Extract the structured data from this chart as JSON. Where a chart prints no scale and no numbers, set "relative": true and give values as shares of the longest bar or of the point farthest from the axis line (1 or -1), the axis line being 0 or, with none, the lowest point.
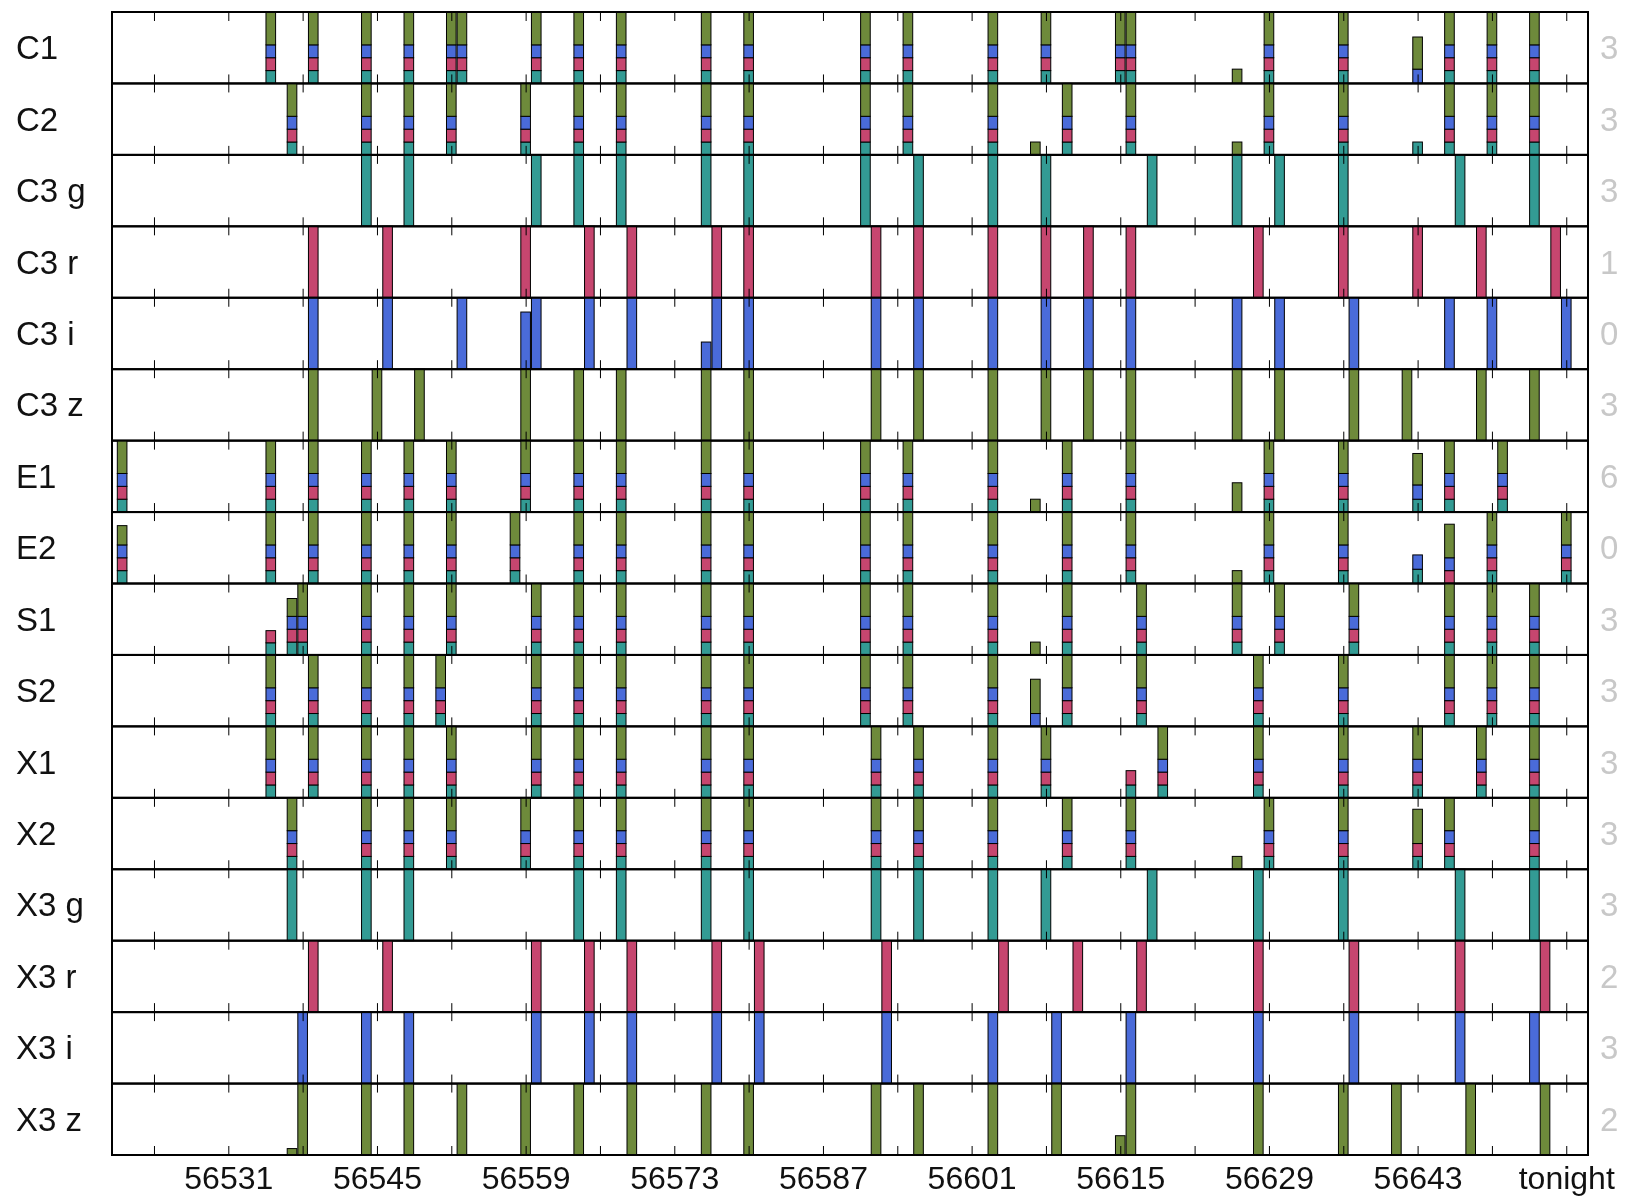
{
  "chart_data": [
    {
      "type": "bar",
      "stacked": true,
      "relative": true,
      "ylabel": "C1",
      "annotations": [
        "3"
      ],
      "xlim": [
        56520,
        56659
      ],
      "tick_labels": false,
      "xticks": [
        56524,
        56531,
        56538,
        56545,
        56552,
        56559,
        56566,
        56573,
        56580,
        56587,
        56594,
        56601,
        56608,
        56615,
        56622,
        56629,
        56636,
        56643,
        56650,
        56657
      ],
      "x": [
        56535,
        56539,
        56544,
        56548,
        56552,
        56553,
        56560,
        56564,
        56568,
        56576,
        56580,
        56591,
        56595,
        56603,
        56608,
        56615,
        56616,
        56626,
        56629,
        56636,
        56643,
        56646,
        56650,
        56654
      ],
      "series": [
        {
          "color": "#339b94",
          "values": [
            0.18,
            0.18,
            0.18,
            0.18,
            0.18,
            0.18,
            0.18,
            0.18,
            0.18,
            0.18,
            0.18,
            0.18,
            0.18,
            0.18,
            0.18,
            0.18,
            0.18,
            null,
            0.18,
            0.18,
            null,
            0.18,
            0.18,
            0.18
          ]
        },
        {
          "color": "#c6466f",
          "values": [
            0.18,
            0.18,
            0.18,
            0.18,
            0.18,
            0.18,
            0.18,
            0.18,
            0.18,
            0.18,
            0.18,
            0.18,
            0.18,
            0.18,
            0.18,
            0.18,
            0.18,
            null,
            0.18,
            0.18,
            null,
            0.18,
            0.18,
            0.18
          ]
        },
        {
          "color": "#4a6bd9",
          "values": [
            0.18,
            0.18,
            0.18,
            0.18,
            0.18,
            0.18,
            0.18,
            0.18,
            0.18,
            0.18,
            0.18,
            0.18,
            0.18,
            0.18,
            0.18,
            0.18,
            0.18,
            null,
            0.18,
            0.18,
            0.2,
            0.18,
            0.18,
            0.18
          ]
        },
        {
          "color": "#6e8a3b",
          "values": [
            0.46,
            0.46,
            0.46,
            0.46,
            0.46,
            0.46,
            0.46,
            0.46,
            0.46,
            0.46,
            0.46,
            0.46,
            0.46,
            0.46,
            0.46,
            0.46,
            0.46,
            0.2,
            0.46,
            0.46,
            0.45,
            0.46,
            0.46,
            0.46
          ]
        }
      ]
    },
    {
      "type": "bar",
      "stacked": true,
      "relative": true,
      "ylabel": "C2",
      "annotations": [
        "3"
      ],
      "xlim": [
        56520,
        56659
      ],
      "tick_labels": false,
      "xticks": [
        56524,
        56531,
        56538,
        56545,
        56552,
        56559,
        56566,
        56573,
        56580,
        56587,
        56594,
        56601,
        56608,
        56615,
        56622,
        56629,
        56636,
        56643,
        56650,
        56657
      ],
      "x": [
        56537,
        56544,
        56548,
        56552,
        56559,
        56564,
        56568,
        56576,
        56580,
        56591,
        56595,
        56603,
        56607,
        56610,
        56616,
        56626,
        56629,
        56636,
        56643,
        56646,
        56650,
        56654
      ],
      "series": [
        {
          "color": "#339b94",
          "values": [
            0.18,
            0.18,
            0.18,
            0.18,
            0.18,
            0.18,
            0.18,
            0.18,
            0.18,
            0.18,
            0.18,
            0.18,
            null,
            0.18,
            0.18,
            null,
            0.18,
            0.18,
            0.18,
            0.18,
            0.18,
            0.18
          ]
        },
        {
          "color": "#c6466f",
          "values": [
            0.18,
            0.18,
            0.18,
            0.18,
            0.18,
            0.18,
            0.18,
            0.18,
            0.18,
            0.18,
            0.18,
            0.18,
            null,
            0.18,
            0.18,
            null,
            0.18,
            0.18,
            null,
            0.18,
            0.18,
            0.18
          ]
        },
        {
          "color": "#4a6bd9",
          "values": [
            0.18,
            0.18,
            0.18,
            0.18,
            0.18,
            0.18,
            0.18,
            0.18,
            0.18,
            0.18,
            0.18,
            0.18,
            null,
            0.18,
            0.18,
            null,
            0.18,
            0.18,
            null,
            0.18,
            0.18,
            0.18
          ]
        },
        {
          "color": "#6e8a3b",
          "values": [
            0.46,
            0.46,
            0.46,
            0.46,
            0.46,
            0.46,
            0.46,
            0.46,
            0.46,
            0.46,
            0.46,
            0.46,
            0.18,
            0.46,
            0.46,
            0.18,
            0.46,
            0.46,
            null,
            0.46,
            0.46,
            0.46
          ]
        }
      ]
    },
    {
      "type": "bar",
      "relative": true,
      "ylabel": "C3 g",
      "annotations": [
        "3"
      ],
      "xlim": [
        56520,
        56659
      ],
      "tick_labels": false,
      "xticks": [
        56524,
        56531,
        56538,
        56545,
        56552,
        56559,
        56566,
        56573,
        56580,
        56587,
        56594,
        56601,
        56608,
        56615,
        56622,
        56629,
        56636,
        56643,
        56650,
        56657
      ],
      "series": [
        {
          "color": "#339b94",
          "x": [
            56544,
            56548,
            56560,
            56564,
            56568,
            56576,
            56580,
            56591,
            56596,
            56603,
            56608,
            56618,
            56626,
            56630,
            56636,
            56647,
            56654
          ],
          "values": [
            1,
            1,
            1,
            1,
            1,
            1,
            1,
            1,
            1,
            1,
            1,
            1,
            1,
            1,
            1,
            1,
            1
          ]
        }
      ]
    },
    {
      "type": "bar",
      "relative": true,
      "ylabel": "C3 r",
      "annotations": [
        "1"
      ],
      "xlim": [
        56520,
        56659
      ],
      "tick_labels": false,
      "xticks": [
        56524,
        56531,
        56538,
        56545,
        56552,
        56559,
        56566,
        56573,
        56580,
        56587,
        56594,
        56601,
        56608,
        56615,
        56622,
        56629,
        56636,
        56643,
        56650,
        56657
      ],
      "series": [
        {
          "color": "#c6466f",
          "x": [
            56539,
            56546,
            56559,
            56565,
            56569,
            56577,
            56580,
            56592,
            56596,
            56603,
            56608,
            56612,
            56616,
            56628,
            56636,
            56643,
            56649,
            56656
          ],
          "values": [
            1,
            1,
            1,
            1,
            1,
            1,
            1,
            1,
            1,
            1,
            1,
            1,
            1,
            1,
            1,
            1,
            1,
            1
          ]
        }
      ]
    },
    {
      "type": "bar",
      "relative": true,
      "ylabel": "C3 i",
      "annotations": [
        "0"
      ],
      "xlim": [
        56520,
        56659
      ],
      "tick_labels": false,
      "xticks": [
        56524,
        56531,
        56538,
        56545,
        56552,
        56559,
        56566,
        56573,
        56580,
        56587,
        56594,
        56601,
        56608,
        56615,
        56622,
        56629,
        56636,
        56643,
        56650,
        56657
      ],
      "series": [
        {
          "color": "#4a6bd9",
          "x": [
            56539,
            56546,
            56553,
            56559,
            56560,
            56565,
            56569,
            56576,
            56577,
            56580,
            56592,
            56596,
            56603,
            56608,
            56612,
            56616,
            56626,
            56630,
            56637,
            56646,
            56650,
            56657
          ],
          "values": [
            1,
            1,
            1,
            0.8,
            1,
            1,
            1,
            0.38,
            1,
            1,
            1,
            1,
            1,
            1,
            1,
            1,
            1,
            1,
            1,
            1,
            1,
            1
          ]
        }
      ]
    },
    {
      "type": "bar",
      "relative": true,
      "ylabel": "C3 z",
      "annotations": [
        "3"
      ],
      "xlim": [
        56520,
        56659
      ],
      "tick_labels": false,
      "xticks": [
        56524,
        56531,
        56538,
        56545,
        56552,
        56559,
        56566,
        56573,
        56580,
        56587,
        56594,
        56601,
        56608,
        56615,
        56622,
        56629,
        56636,
        56643,
        56650,
        56657
      ],
      "series": [
        {
          "color": "#6e8a3b",
          "x": [
            56539,
            56545,
            56549,
            56559,
            56564,
            56568,
            56576,
            56580,
            56592,
            56596,
            56603,
            56608,
            56612,
            56616,
            56626,
            56630,
            56637,
            56642,
            56649,
            56654
          ],
          "values": [
            1,
            1,
            1,
            1,
            1,
            1,
            1,
            1,
            1,
            1,
            1,
            1,
            1,
            1,
            1,
            1,
            1,
            1,
            1,
            1
          ]
        }
      ]
    },
    {
      "type": "bar",
      "stacked": true,
      "relative": true,
      "ylabel": "E1",
      "annotations": [
        "6"
      ],
      "xlim": [
        56520,
        56659
      ],
      "tick_labels": false,
      "xticks": [
        56524,
        56531,
        56538,
        56545,
        56552,
        56559,
        56566,
        56573,
        56580,
        56587,
        56594,
        56601,
        56608,
        56615,
        56622,
        56629,
        56636,
        56643,
        56650,
        56657
      ],
      "x": [
        56521,
        56535,
        56539,
        56544,
        56548,
        56552,
        56559,
        56564,
        56568,
        56576,
        56580,
        56591,
        56595,
        56603,
        56607,
        56610,
        56616,
        56626,
        56629,
        56636,
        56643,
        56646,
        56651
      ],
      "series": [
        {
          "color": "#339b94",
          "values": [
            0.18,
            0.18,
            0.18,
            0.18,
            0.18,
            0.18,
            0.18,
            0.18,
            0.18,
            0.18,
            0.18,
            0.18,
            0.18,
            0.18,
            null,
            0.18,
            0.18,
            null,
            0.18,
            0.18,
            0.18,
            0.18,
            0.18
          ]
        },
        {
          "color": "#c6466f",
          "values": [
            0.18,
            0.18,
            0.18,
            0.18,
            0.18,
            0.18,
            0.18,
            0.18,
            0.18,
            0.18,
            0.18,
            0.18,
            0.18,
            0.18,
            null,
            0.18,
            0.18,
            null,
            0.18,
            0.18,
            null,
            0.18,
            0.18
          ]
        },
        {
          "color": "#4a6bd9",
          "values": [
            0.18,
            0.18,
            0.18,
            0.18,
            0.18,
            0.18,
            0.18,
            0.18,
            0.18,
            0.18,
            0.18,
            0.18,
            0.18,
            0.18,
            null,
            0.18,
            0.18,
            null,
            0.18,
            0.18,
            0.2,
            0.18,
            0.18
          ]
        },
        {
          "color": "#6e8a3b",
          "values": [
            0.46,
            0.46,
            0.46,
            0.46,
            0.46,
            0.46,
            0.46,
            0.46,
            0.46,
            0.46,
            0.46,
            0.46,
            0.46,
            0.46,
            0.18,
            0.46,
            0.46,
            0.41,
            0.46,
            0.46,
            0.44,
            0.46,
            0.46
          ]
        }
      ]
    },
    {
      "type": "bar",
      "stacked": true,
      "relative": true,
      "ylabel": "E2",
      "annotations": [
        "0"
      ],
      "xlim": [
        56520,
        56659
      ],
      "tick_labels": false,
      "xticks": [
        56524,
        56531,
        56538,
        56545,
        56552,
        56559,
        56566,
        56573,
        56580,
        56587,
        56594,
        56601,
        56608,
        56615,
        56622,
        56629,
        56636,
        56643,
        56650,
        56657
      ],
      "x": [
        56521,
        56535,
        56539,
        56544,
        56548,
        56552,
        56558,
        56564,
        56568,
        56576,
        56580,
        56591,
        56595,
        56603,
        56610,
        56616,
        56626,
        56629,
        56636,
        56643,
        56646,
        56650,
        56657
      ],
      "series": [
        {
          "color": "#339b94",
          "values": [
            0.18,
            0.18,
            0.18,
            0.18,
            0.18,
            0.18,
            0.18,
            0.18,
            0.18,
            0.18,
            0.18,
            0.18,
            0.18,
            0.18,
            0.18,
            0.18,
            null,
            0.18,
            0.18,
            0.2,
            null,
            0.18,
            0.18
          ]
        },
        {
          "color": "#c6466f",
          "values": [
            0.18,
            0.18,
            0.18,
            0.18,
            0.18,
            0.18,
            0.18,
            0.18,
            0.18,
            0.18,
            0.18,
            0.18,
            0.18,
            0.18,
            0.18,
            0.18,
            null,
            0.18,
            0.18,
            null,
            0.18,
            0.18,
            0.18
          ]
        },
        {
          "color": "#4a6bd9",
          "values": [
            0.18,
            0.18,
            0.18,
            0.18,
            0.18,
            0.18,
            0.18,
            0.18,
            0.18,
            0.18,
            0.18,
            0.18,
            0.18,
            0.18,
            0.18,
            0.18,
            null,
            0.18,
            0.18,
            0.2,
            0.18,
            0.18,
            0.18
          ]
        },
        {
          "color": "#6e8a3b",
          "values": [
            0.27,
            0.46,
            0.46,
            0.46,
            0.46,
            0.46,
            0.46,
            0.46,
            0.46,
            0.46,
            0.46,
            0.46,
            0.46,
            0.46,
            0.46,
            0.46,
            0.18,
            0.46,
            0.46,
            null,
            0.47,
            0.46,
            0.46
          ]
        }
      ]
    },
    {
      "type": "bar",
      "stacked": true,
      "relative": true,
      "ylabel": "S1",
      "annotations": [
        "3"
      ],
      "xlim": [
        56520,
        56659
      ],
      "tick_labels": false,
      "xticks": [
        56524,
        56531,
        56538,
        56545,
        56552,
        56559,
        56566,
        56573,
        56580,
        56587,
        56594,
        56601,
        56608,
        56615,
        56622,
        56629,
        56636,
        56643,
        56650,
        56657
      ],
      "x": [
        56535,
        56537,
        56538,
        56544,
        56548,
        56552,
        56560,
        56564,
        56568,
        56576,
        56580,
        56591,
        56595,
        56603,
        56607,
        56610,
        56617,
        56626,
        56630,
        56637,
        56646,
        56650,
        56654
      ],
      "series": [
        {
          "color": "#339b94",
          "values": [
            0.17,
            0.18,
            0.18,
            0.18,
            0.18,
            0.18,
            0.18,
            0.18,
            0.18,
            0.18,
            0.18,
            0.18,
            0.18,
            0.18,
            null,
            0.18,
            0.18,
            0.18,
            0.18,
            0.18,
            0.18,
            0.18,
            0.18
          ]
        },
        {
          "color": "#c6466f",
          "values": [
            0.17,
            0.18,
            0.18,
            0.18,
            0.18,
            0.18,
            0.18,
            0.18,
            0.18,
            0.18,
            0.18,
            0.18,
            0.18,
            0.18,
            null,
            0.18,
            0.18,
            0.18,
            0.18,
            0.18,
            0.18,
            0.18,
            0.18
          ]
        },
        {
          "color": "#4a6bd9",
          "values": [
            null,
            0.18,
            0.18,
            0.18,
            0.18,
            0.18,
            0.18,
            0.18,
            0.18,
            0.18,
            0.18,
            0.18,
            0.18,
            0.18,
            null,
            0.18,
            0.18,
            0.18,
            0.18,
            0.18,
            0.18,
            0.18,
            0.18
          ]
        },
        {
          "color": "#6e8a3b",
          "values": [
            null,
            0.25,
            0.46,
            0.46,
            0.46,
            0.46,
            0.46,
            0.46,
            0.46,
            0.46,
            0.46,
            0.46,
            0.46,
            0.46,
            0.18,
            0.46,
            0.46,
            0.46,
            0.46,
            0.46,
            0.46,
            0.46,
            0.46
          ]
        }
      ]
    },
    {
      "type": "bar",
      "stacked": true,
      "relative": true,
      "ylabel": "S2",
      "annotations": [
        "3"
      ],
      "xlim": [
        56520,
        56659
      ],
      "tick_labels": false,
      "xticks": [
        56524,
        56531,
        56538,
        56545,
        56552,
        56559,
        56566,
        56573,
        56580,
        56587,
        56594,
        56601,
        56608,
        56615,
        56622,
        56629,
        56636,
        56643,
        56650,
        56657
      ],
      "x": [
        56535,
        56539,
        56544,
        56548,
        56551,
        56560,
        56564,
        56568,
        56576,
        56580,
        56591,
        56595,
        56603,
        56607,
        56610,
        56617,
        56628,
        56636,
        56646,
        56650,
        56654
      ],
      "series": [
        {
          "color": "#339b94",
          "values": [
            0.18,
            0.18,
            0.18,
            0.18,
            0.18,
            0.18,
            0.18,
            0.18,
            0.18,
            0.18,
            0.18,
            0.18,
            0.18,
            null,
            0.18,
            0.18,
            0.18,
            0.18,
            0.18,
            0.18,
            0.18
          ]
        },
        {
          "color": "#c6466f",
          "values": [
            0.18,
            0.18,
            0.18,
            0.18,
            0.18,
            0.18,
            0.18,
            0.18,
            0.18,
            0.18,
            0.18,
            0.18,
            0.18,
            null,
            0.18,
            0.18,
            0.18,
            0.18,
            0.18,
            0.18,
            0.18
          ]
        },
        {
          "color": "#4a6bd9",
          "values": [
            0.18,
            0.18,
            0.18,
            0.18,
            0.18,
            0.18,
            0.18,
            0.18,
            0.18,
            0.18,
            0.18,
            0.18,
            0.18,
            0.18,
            0.18,
            0.18,
            0.18,
            0.18,
            0.18,
            0.18,
            0.18
          ]
        },
        {
          "color": "#6e8a3b",
          "values": [
            0.46,
            0.46,
            0.46,
            0.46,
            0.46,
            0.46,
            0.46,
            0.46,
            0.46,
            0.46,
            0.46,
            0.46,
            0.46,
            0.48,
            0.46,
            0.46,
            0.46,
            0.46,
            0.46,
            0.46,
            0.46
          ]
        }
      ]
    },
    {
      "type": "bar",
      "stacked": true,
      "relative": true,
      "ylabel": "X1",
      "annotations": [
        "3"
      ],
      "xlim": [
        56520,
        56659
      ],
      "tick_labels": false,
      "xticks": [
        56524,
        56531,
        56538,
        56545,
        56552,
        56559,
        56566,
        56573,
        56580,
        56587,
        56594,
        56601,
        56608,
        56615,
        56622,
        56629,
        56636,
        56643,
        56650,
        56657
      ],
      "x": [
        56535,
        56539,
        56544,
        56548,
        56552,
        56560,
        56564,
        56568,
        56576,
        56580,
        56592,
        56596,
        56603,
        56608,
        56616,
        56619,
        56628,
        56636,
        56643,
        56649,
        56654
      ],
      "series": [
        {
          "color": "#339b94",
          "values": [
            0.18,
            0.18,
            0.18,
            0.18,
            0.18,
            0.18,
            0.18,
            0.18,
            0.18,
            0.18,
            0.18,
            0.18,
            0.18,
            0.18,
            0.18,
            0.18,
            0.18,
            0.18,
            0.18,
            0.18,
            0.18
          ]
        },
        {
          "color": "#c6466f",
          "values": [
            0.18,
            0.18,
            0.18,
            0.18,
            0.18,
            0.18,
            0.18,
            0.18,
            0.18,
            0.18,
            0.18,
            0.18,
            0.18,
            0.18,
            0.2,
            0.18,
            0.18,
            0.18,
            0.18,
            0.18,
            0.18
          ]
        },
        {
          "color": "#4a6bd9",
          "values": [
            0.18,
            0.18,
            0.18,
            0.18,
            0.18,
            0.18,
            0.18,
            0.18,
            0.18,
            0.18,
            0.18,
            0.18,
            0.18,
            0.18,
            null,
            0.18,
            0.18,
            0.18,
            0.18,
            0.18,
            0.18
          ]
        },
        {
          "color": "#6e8a3b",
          "values": [
            0.46,
            0.46,
            0.46,
            0.46,
            0.46,
            0.46,
            0.46,
            0.46,
            0.46,
            0.46,
            0.46,
            0.46,
            0.46,
            0.46,
            null,
            0.46,
            0.46,
            0.46,
            0.46,
            0.46,
            0.46
          ]
        }
      ]
    },
    {
      "type": "bar",
      "stacked": true,
      "relative": true,
      "ylabel": "X2",
      "annotations": [
        "3"
      ],
      "xlim": [
        56520,
        56659
      ],
      "tick_labels": false,
      "xticks": [
        56524,
        56531,
        56538,
        56545,
        56552,
        56559,
        56566,
        56573,
        56580,
        56587,
        56594,
        56601,
        56608,
        56615,
        56622,
        56629,
        56636,
        56643,
        56650,
        56657
      ],
      "x": [
        56537,
        56544,
        56548,
        56552,
        56559,
        56564,
        56568,
        56576,
        56580,
        56592,
        56596,
        56603,
        56610,
        56616,
        56626,
        56629,
        56636,
        56643,
        56646,
        56654
      ],
      "series": [
        {
          "color": "#339b94",
          "values": [
            0.18,
            0.18,
            0.18,
            0.18,
            0.18,
            0.18,
            0.18,
            0.18,
            0.18,
            0.18,
            0.18,
            0.18,
            0.18,
            0.18,
            null,
            0.18,
            0.18,
            0.18,
            0.18,
            0.18
          ]
        },
        {
          "color": "#c6466f",
          "values": [
            0.18,
            0.18,
            0.18,
            0.18,
            0.18,
            0.18,
            0.18,
            0.18,
            0.18,
            0.18,
            0.18,
            0.18,
            0.18,
            0.18,
            null,
            0.18,
            0.18,
            0.18,
            0.18,
            0.18
          ]
        },
        {
          "color": "#4a6bd9",
          "values": [
            0.18,
            0.18,
            0.18,
            0.18,
            0.18,
            0.18,
            0.18,
            0.18,
            0.18,
            0.18,
            0.18,
            0.18,
            0.18,
            0.18,
            null,
            0.18,
            0.18,
            null,
            0.18,
            0.18
          ]
        },
        {
          "color": "#6e8a3b",
          "values": [
            0.46,
            0.46,
            0.46,
            0.46,
            0.46,
            0.46,
            0.46,
            0.46,
            0.46,
            0.46,
            0.46,
            0.46,
            0.46,
            0.46,
            0.18,
            0.46,
            0.46,
            0.48,
            0.46,
            0.46
          ]
        }
      ]
    },
    {
      "type": "bar",
      "relative": true,
      "ylabel": "X3 g",
      "annotations": [
        "3"
      ],
      "xlim": [
        56520,
        56659
      ],
      "tick_labels": false,
      "xticks": [
        56524,
        56531,
        56538,
        56545,
        56552,
        56559,
        56566,
        56573,
        56580,
        56587,
        56594,
        56601,
        56608,
        56615,
        56622,
        56629,
        56636,
        56643,
        56650,
        56657
      ],
      "series": [
        {
          "color": "#339b94",
          "x": [
            56537,
            56544,
            56548,
            56564,
            56568,
            56576,
            56580,
            56592,
            56596,
            56603,
            56608,
            56618,
            56628,
            56636,
            56647,
            56654
          ],
          "values": [
            1,
            1,
            1,
            1,
            1,
            1,
            1,
            1,
            1,
            1,
            1,
            1,
            1,
            1,
            1,
            1
          ]
        }
      ]
    },
    {
      "type": "bar",
      "relative": true,
      "ylabel": "X3 r",
      "annotations": [
        "2"
      ],
      "xlim": [
        56520,
        56659
      ],
      "tick_labels": false,
      "xticks": [
        56524,
        56531,
        56538,
        56545,
        56552,
        56559,
        56566,
        56573,
        56580,
        56587,
        56594,
        56601,
        56608,
        56615,
        56622,
        56629,
        56636,
        56643,
        56650,
        56657
      ],
      "series": [
        {
          "color": "#c6466f",
          "x": [
            56539,
            56546,
            56560,
            56565,
            56569,
            56577,
            56581,
            56593,
            56604,
            56611,
            56617,
            56628,
            56637,
            56647,
            56655
          ],
          "values": [
            1,
            1,
            1,
            1,
            1,
            1,
            1,
            1,
            1,
            1,
            1,
            1,
            1,
            1,
            1
          ]
        }
      ]
    },
    {
      "type": "bar",
      "relative": true,
      "ylabel": "X3 i",
      "annotations": [
        "3"
      ],
      "xlim": [
        56520,
        56659
      ],
      "tick_labels": false,
      "xticks": [
        56524,
        56531,
        56538,
        56545,
        56552,
        56559,
        56566,
        56573,
        56580,
        56587,
        56594,
        56601,
        56608,
        56615,
        56622,
        56629,
        56636,
        56643,
        56650,
        56657
      ],
      "series": [
        {
          "color": "#4a6bd9",
          "x": [
            56538,
            56544,
            56548,
            56560,
            56565,
            56569,
            56577,
            56581,
            56593,
            56603,
            56609,
            56616,
            56628,
            56637,
            56647,
            56654
          ],
          "values": [
            1,
            1,
            1,
            1,
            1,
            1,
            1,
            1,
            1,
            1,
            1,
            1,
            1,
            1,
            1,
            1
          ]
        }
      ]
    },
    {
      "type": "bar",
      "relative": true,
      "ylabel": "X3 z",
      "annotations": [
        "2"
      ],
      "xlim": [
        56520,
        56659
      ],
      "tick_labels": "x",
      "xticks": [
        {
          "value": 56524,
          "label": null
        },
        56531,
        {
          "value": 56538,
          "label": null
        },
        56545,
        {
          "value": 56552,
          "label": null
        },
        56559,
        {
          "value": 56566,
          "label": null
        },
        56573,
        {
          "value": 56580,
          "label": null
        },
        56587,
        {
          "value": 56594,
          "label": null
        },
        56601,
        {
          "value": 56608,
          "label": null
        },
        56615,
        {
          "value": 56622,
          "label": null
        },
        56629,
        {
          "value": 56636,
          "label": null
        },
        56643,
        {
          "value": 56650,
          "label": null
        },
        {
          "value": 56657,
          "label": "tonight"
        }
      ],
      "series": [
        {
          "color": "#6e8a3b",
          "x": [
            56537,
            56538,
            56544,
            56548,
            56553,
            56559,
            56564,
            56569,
            56576,
            56580,
            56592,
            56596,
            56603,
            56609,
            56615,
            56616,
            56628,
            56636,
            56641,
            56648,
            56655
          ],
          "values": [
            0.09,
            1,
            1,
            1,
            1,
            1,
            1,
            1,
            1,
            1,
            1,
            1,
            1,
            1,
            0.27,
            1,
            1,
            1,
            1,
            1,
            1
          ]
        }
      ]
    }
  ]
}
